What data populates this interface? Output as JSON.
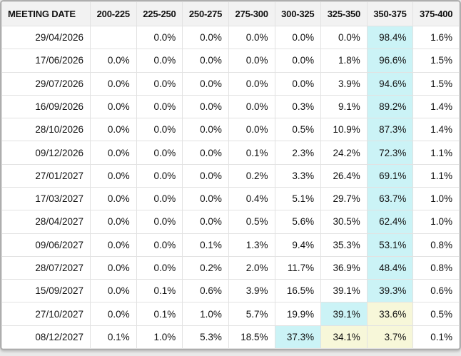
{
  "table": {
    "columns": [
      "MEETING DATE",
      "200-225",
      "225-250",
      "250-275",
      "275-300",
      "300-325",
      "325-350",
      "350-375",
      "375-400"
    ],
    "rows": [
      {
        "date": "29/04/2026",
        "values": [
          "",
          "0.0%",
          "0.0%",
          "0.0%",
          "0.0%",
          "0.0%",
          "98.4%",
          "1.6%"
        ],
        "highlights": {
          "6": "cyan"
        }
      },
      {
        "date": "17/06/2026",
        "values": [
          "0.0%",
          "0.0%",
          "0.0%",
          "0.0%",
          "0.0%",
          "1.8%",
          "96.6%",
          "1.5%"
        ],
        "highlights": {
          "6": "cyan"
        }
      },
      {
        "date": "29/07/2026",
        "values": [
          "0.0%",
          "0.0%",
          "0.0%",
          "0.0%",
          "0.0%",
          "3.9%",
          "94.6%",
          "1.5%"
        ],
        "highlights": {
          "6": "cyan"
        }
      },
      {
        "date": "16/09/2026",
        "values": [
          "0.0%",
          "0.0%",
          "0.0%",
          "0.0%",
          "0.3%",
          "9.1%",
          "89.2%",
          "1.4%"
        ],
        "highlights": {
          "6": "cyan"
        }
      },
      {
        "date": "28/10/2026",
        "values": [
          "0.0%",
          "0.0%",
          "0.0%",
          "0.0%",
          "0.5%",
          "10.9%",
          "87.3%",
          "1.4%"
        ],
        "highlights": {
          "6": "cyan"
        }
      },
      {
        "date": "09/12/2026",
        "values": [
          "0.0%",
          "0.0%",
          "0.0%",
          "0.1%",
          "2.3%",
          "24.2%",
          "72.3%",
          "1.1%"
        ],
        "highlights": {
          "6": "cyan"
        }
      },
      {
        "date": "27/01/2027",
        "values": [
          "0.0%",
          "0.0%",
          "0.0%",
          "0.2%",
          "3.3%",
          "26.4%",
          "69.1%",
          "1.1%"
        ],
        "highlights": {
          "6": "cyan"
        }
      },
      {
        "date": "17/03/2027",
        "values": [
          "0.0%",
          "0.0%",
          "0.0%",
          "0.4%",
          "5.1%",
          "29.7%",
          "63.7%",
          "1.0%"
        ],
        "highlights": {
          "6": "cyan"
        }
      },
      {
        "date": "28/04/2027",
        "values": [
          "0.0%",
          "0.0%",
          "0.0%",
          "0.5%",
          "5.6%",
          "30.5%",
          "62.4%",
          "1.0%"
        ],
        "highlights": {
          "6": "cyan"
        }
      },
      {
        "date": "09/06/2027",
        "values": [
          "0.0%",
          "0.0%",
          "0.1%",
          "1.3%",
          "9.4%",
          "35.3%",
          "53.1%",
          "0.8%"
        ],
        "highlights": {
          "6": "cyan"
        }
      },
      {
        "date": "28/07/2027",
        "values": [
          "0.0%",
          "0.0%",
          "0.2%",
          "2.0%",
          "11.7%",
          "36.9%",
          "48.4%",
          "0.8%"
        ],
        "highlights": {
          "6": "cyan"
        }
      },
      {
        "date": "15/09/2027",
        "values": [
          "0.0%",
          "0.1%",
          "0.6%",
          "3.9%",
          "16.5%",
          "39.1%",
          "39.3%",
          "0.6%"
        ],
        "highlights": {
          "6": "cyan"
        }
      },
      {
        "date": "27/10/2027",
        "values": [
          "0.0%",
          "0.1%",
          "1.0%",
          "5.7%",
          "19.9%",
          "39.1%",
          "33.6%",
          "0.5%"
        ],
        "highlights": {
          "5": "cyan",
          "6": "yellow"
        }
      },
      {
        "date": "08/12/2027",
        "values": [
          "0.1%",
          "1.0%",
          "5.3%",
          "18.5%",
          "37.3%",
          "34.1%",
          "3.7%",
          "0.1%"
        ],
        "highlights": {
          "4": "cyan",
          "5": "yellow",
          "6": "yellow"
        }
      }
    ]
  },
  "colors": {
    "highlight_cyan": "#cbf3f6",
    "highlight_yellow": "#f7f7d9",
    "header_bg": "#f2f2f2",
    "grid_line": "#e2e2e2",
    "outer_border": "#aeaeae",
    "page_bg": "#e9e9e9",
    "text": "#111111"
  }
}
